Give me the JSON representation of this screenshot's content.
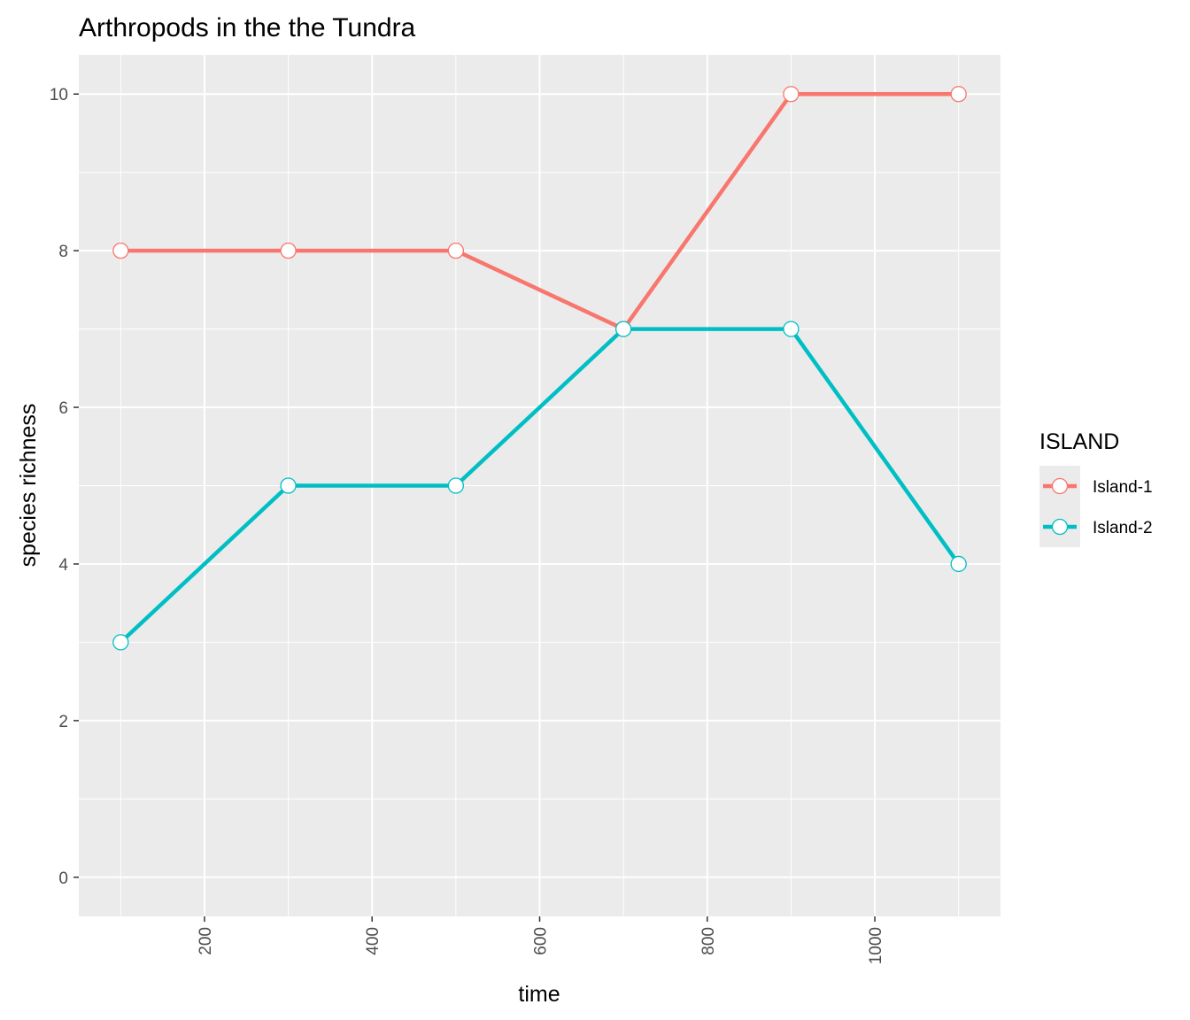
{
  "chart_data": {
    "type": "line",
    "title": "Arthropods in the the Tundra",
    "xlabel": "time",
    "ylabel": "species richness",
    "x": [
      100,
      300,
      500,
      700,
      900,
      1100
    ],
    "xlim": [
      50,
      1150
    ],
    "ylim": [
      -0.5,
      10.5
    ],
    "x_ticks": [
      200,
      400,
      600,
      800,
      1000
    ],
    "x_tick_labels": [
      "200",
      "400",
      "600",
      "800",
      "1000"
    ],
    "y_ticks": [
      0,
      2,
      4,
      6,
      8,
      10
    ],
    "y_tick_labels": [
      "0",
      "2",
      "4",
      "6",
      "8",
      "10"
    ],
    "grid": true,
    "legend": {
      "title": "ISLAND",
      "placement": "right"
    },
    "series": [
      {
        "name": "Island-1",
        "color": "#F8766D",
        "values": [
          8,
          8,
          8,
          7,
          10,
          10
        ]
      },
      {
        "name": "Island-2",
        "color": "#00BFC4",
        "values": [
          3,
          5,
          5,
          7,
          7,
          4
        ]
      }
    ],
    "panel_background": "#EBEBEB",
    "grid_color": "#FFFFFF"
  }
}
